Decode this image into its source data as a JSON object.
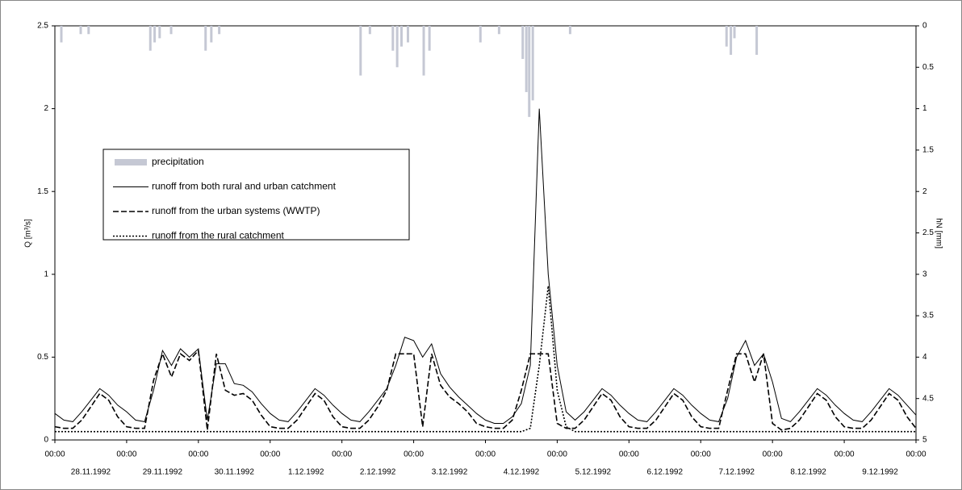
{
  "chart_data": {
    "type": "line",
    "y_label": "Q [m³/s]",
    "y2_label": "hN [mm]",
    "ylim": [
      0,
      2.5
    ],
    "yticks": [
      0,
      0.5,
      1,
      1.5,
      2,
      2.5
    ],
    "y2lim": [
      5,
      0
    ],
    "y2ticks": [
      0,
      0.5,
      1,
      1.5,
      2,
      2.5,
      3,
      3.5,
      4,
      4.5,
      5
    ],
    "xlim": [
      0,
      12
    ],
    "xticks": [
      {
        "value": 0,
        "label": "00:00"
      },
      {
        "value": 1,
        "label": "00:00"
      },
      {
        "value": 2,
        "label": "00:00"
      },
      {
        "value": 3,
        "label": "00:00"
      },
      {
        "value": 4,
        "label": "00:00"
      },
      {
        "value": 5,
        "label": "00:00"
      },
      {
        "value": 6,
        "label": "00:00"
      },
      {
        "value": 7,
        "label": "00:00"
      },
      {
        "value": 8,
        "label": "00:00"
      },
      {
        "value": 9,
        "label": "00:00"
      },
      {
        "value": 10,
        "label": "00:00"
      },
      {
        "value": 11,
        "label": "00:00"
      },
      {
        "value": 12,
        "label": "00:00"
      }
    ],
    "day_labels": [
      "28.11.1992",
      "29.11.1992",
      "30.11.1992",
      "1.12.1992",
      "2.12.1992",
      "3.12.1992",
      "4.12.1992",
      "5.12.1992",
      "6.12.1992",
      "7.12.1992",
      "8.12.1992",
      "9.12.1992"
    ],
    "x": [
      0,
      0.125,
      0.25,
      0.375,
      0.5,
      0.625,
      0.75,
      0.875,
      1,
      1.125,
      1.25,
      1.375,
      1.5,
      1.625,
      1.75,
      1.875,
      2,
      2.125,
      2.25,
      2.375,
      2.5,
      2.625,
      2.75,
      2.875,
      3,
      3.125,
      3.25,
      3.375,
      3.5,
      3.625,
      3.75,
      3.875,
      4,
      4.125,
      4.25,
      4.375,
      4.5,
      4.625,
      4.75,
      4.875,
      5,
      5.125,
      5.25,
      5.375,
      5.5,
      5.625,
      5.75,
      5.875,
      6,
      6.125,
      6.25,
      6.375,
      6.5,
      6.625,
      6.75,
      6.875,
      7,
      7.125,
      7.25,
      7.375,
      7.5,
      7.625,
      7.75,
      7.875,
      8,
      8.125,
      8.25,
      8.375,
      8.5,
      8.625,
      8.75,
      8.875,
      9,
      9.125,
      9.25,
      9.375,
      9.5,
      9.625,
      9.75,
      9.875,
      10,
      10.125,
      10.25,
      10.375,
      10.5,
      10.625,
      10.75,
      10.875,
      11,
      11.125,
      11.25,
      11.375,
      11.5,
      11.625,
      11.75,
      11.875,
      12
    ],
    "series": [
      {
        "name": "precipitation",
        "type": "bar",
        "axis": "y2",
        "color": "#c5c8d4",
        "x": [
          0.09,
          0.36,
          0.47,
          1.33,
          1.39,
          1.46,
          1.62,
          2.1,
          2.18,
          2.29,
          4.26,
          4.39,
          4.71,
          4.77,
          4.83,
          4.92,
          5.14,
          5.22,
          5.93,
          6.19,
          6.52,
          6.57,
          6.61,
          6.66,
          7.18,
          9.36,
          9.42,
          9.47,
          9.78
        ],
        "values": [
          0.2,
          0.1,
          0.1,
          0.3,
          0.2,
          0.15,
          0.1,
          0.3,
          0.2,
          0.1,
          0.6,
          0.1,
          0.3,
          0.5,
          0.25,
          0.2,
          0.6,
          0.3,
          0.2,
          0.1,
          0.4,
          0.8,
          1.1,
          0.9,
          0.1,
          0.25,
          0.35,
          0.15,
          0.35
        ]
      },
      {
        "name": "runoff from both rural and urban catchment",
        "style": "solid",
        "color": "#000000",
        "values": [
          0.16,
          0.12,
          0.11,
          0.17,
          0.24,
          0.31,
          0.27,
          0.21,
          0.17,
          0.12,
          0.11,
          0.3,
          0.54,
          0.45,
          0.55,
          0.5,
          0.55,
          0.12,
          0.46,
          0.46,
          0.34,
          0.33,
          0.29,
          0.22,
          0.16,
          0.12,
          0.11,
          0.17,
          0.24,
          0.31,
          0.27,
          0.21,
          0.16,
          0.12,
          0.11,
          0.17,
          0.24,
          0.31,
          0.45,
          0.62,
          0.6,
          0.5,
          0.58,
          0.4,
          0.32,
          0.26,
          0.21,
          0.16,
          0.12,
          0.1,
          0.1,
          0.14,
          0.22,
          0.45,
          2.0,
          1.0,
          0.45,
          0.17,
          0.12,
          0.17,
          0.24,
          0.31,
          0.27,
          0.21,
          0.16,
          0.12,
          0.11,
          0.17,
          0.24,
          0.31,
          0.27,
          0.21,
          0.16,
          0.12,
          0.11,
          0.25,
          0.5,
          0.6,
          0.45,
          0.52,
          0.35,
          0.13,
          0.11,
          0.17,
          0.24,
          0.31,
          0.27,
          0.21,
          0.16,
          0.12,
          0.11,
          0.17,
          0.24,
          0.31,
          0.27,
          0.21,
          0.15
        ]
      },
      {
        "name": "runoff from the urban systems (WWTP)",
        "style": "dashed",
        "color": "#000000",
        "values": [
          0.08,
          0.07,
          0.07,
          0.12,
          0.2,
          0.28,
          0.24,
          0.14,
          0.08,
          0.07,
          0.07,
          0.36,
          0.52,
          0.38,
          0.52,
          0.48,
          0.54,
          0.06,
          0.52,
          0.3,
          0.27,
          0.28,
          0.24,
          0.15,
          0.08,
          0.07,
          0.07,
          0.12,
          0.2,
          0.28,
          0.24,
          0.14,
          0.08,
          0.07,
          0.07,
          0.12,
          0.2,
          0.3,
          0.52,
          0.52,
          0.52,
          0.08,
          0.52,
          0.33,
          0.26,
          0.22,
          0.17,
          0.1,
          0.08,
          0.07,
          0.07,
          0.12,
          0.3,
          0.52,
          0.52,
          0.52,
          0.1,
          0.07,
          0.07,
          0.12,
          0.2,
          0.28,
          0.24,
          0.14,
          0.08,
          0.07,
          0.07,
          0.12,
          0.2,
          0.28,
          0.24,
          0.14,
          0.08,
          0.07,
          0.07,
          0.3,
          0.52,
          0.52,
          0.35,
          0.52,
          0.1,
          0.06,
          0.07,
          0.12,
          0.2,
          0.28,
          0.24,
          0.14,
          0.08,
          0.07,
          0.07,
          0.12,
          0.2,
          0.28,
          0.24,
          0.14,
          0.07
        ]
      },
      {
        "name": "runoff from the rural catchment",
        "style": "dotted",
        "color": "#000000",
        "values": [
          0.05,
          0.05,
          0.05,
          0.05,
          0.05,
          0.05,
          0.05,
          0.05,
          0.05,
          0.05,
          0.05,
          0.05,
          0.05,
          0.05,
          0.05,
          0.05,
          0.05,
          0.05,
          0.05,
          0.05,
          0.05,
          0.05,
          0.05,
          0.05,
          0.05,
          0.05,
          0.05,
          0.05,
          0.05,
          0.05,
          0.05,
          0.05,
          0.05,
          0.05,
          0.05,
          0.05,
          0.05,
          0.05,
          0.05,
          0.05,
          0.05,
          0.05,
          0.05,
          0.05,
          0.05,
          0.05,
          0.05,
          0.05,
          0.05,
          0.05,
          0.05,
          0.05,
          0.05,
          0.07,
          0.45,
          0.93,
          0.3,
          0.08,
          0.05,
          0.05,
          0.05,
          0.05,
          0.05,
          0.05,
          0.05,
          0.05,
          0.05,
          0.05,
          0.05,
          0.05,
          0.05,
          0.05,
          0.05,
          0.05,
          0.05,
          0.05,
          0.05,
          0.05,
          0.05,
          0.05,
          0.05,
          0.05,
          0.05,
          0.05,
          0.05,
          0.05,
          0.05,
          0.05,
          0.05,
          0.05,
          0.05,
          0.05,
          0.05,
          0.05,
          0.05,
          0.05,
          0.05
        ]
      }
    ]
  }
}
